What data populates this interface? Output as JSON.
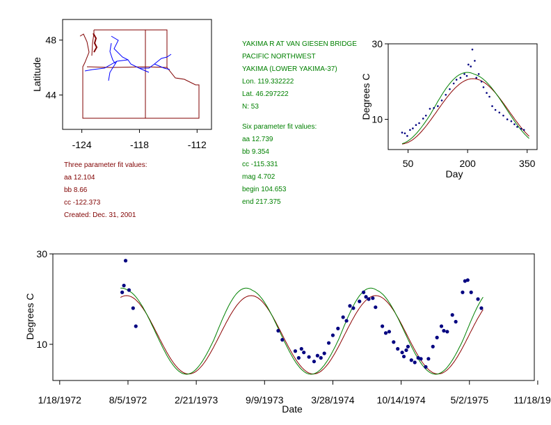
{
  "colors": {
    "three_param": "#8b0000",
    "six_param": "#008000",
    "points": "#000080",
    "map_border": "#800000",
    "river": "#0000ff",
    "axis": "#000000"
  },
  "site": {
    "title": "YAKIMA R AT VAN GIESEN BRIDGE",
    "region": "PACIFIC NORTHWEST",
    "basin": "YAKIMA (LOWER YAKIMA-37)",
    "lon": "Lon. 119.332222",
    "lat": "Lat. 46.297222",
    "n": "N: 53"
  },
  "six_param": {
    "heading": "Six parameter fit values:",
    "aa": "aa 12.739",
    "bb": "bb 9.354",
    "cc": "cc -115.331",
    "mag": "mag 4.702",
    "begin": "begin 104.653",
    "end": "end 217.375"
  },
  "three_param": {
    "heading": "Three parameter fit values:",
    "aa": "aa 12.104",
    "bb": "bb 8.66",
    "cc": "cc -122.373",
    "created": "Created:   Dec. 31, 2001"
  },
  "chart_data": [
    {
      "type": "map",
      "name": "location-map",
      "ylabel": "Latitude",
      "x_ticks": [
        "-124",
        "-118",
        "-112"
      ],
      "y_ticks": [
        "48",
        "44"
      ],
      "xlim": [
        -126,
        -110.5
      ],
      "ylim": [
        41.5,
        49.5
      ]
    },
    {
      "type": "scatter",
      "name": "seasonal",
      "xlabel": "Day",
      "ylabel": "Degrees C",
      "xlim": [
        0,
        375
      ],
      "ylim": [
        2,
        30
      ],
      "x_ticks": [
        50,
        200,
        350
      ],
      "y_ticks": [
        10,
        30
      ],
      "points": [
        [
          35,
          6.5
        ],
        [
          42,
          6.3
        ],
        [
          48,
          5.6
        ],
        [
          55,
          7.2
        ],
        [
          62,
          7.6
        ],
        [
          70,
          8.5
        ],
        [
          78,
          9.0
        ],
        [
          88,
          10.2
        ],
        [
          95,
          11.0
        ],
        [
          105,
          12.8
        ],
        [
          115,
          13.0
        ],
        [
          125,
          13.5
        ],
        [
          135,
          15.0
        ],
        [
          145,
          16.5
        ],
        [
          155,
          18.0
        ],
        [
          165,
          19.5
        ],
        [
          172,
          20.5
        ],
        [
          182,
          21.0
        ],
        [
          192,
          22.0
        ],
        [
          198,
          21.5
        ],
        [
          202,
          24.5
        ],
        [
          208,
          24.0
        ],
        [
          212,
          28.5
        ],
        [
          218,
          25.5
        ],
        [
          222,
          21.0
        ],
        [
          228,
          22.0
        ],
        [
          235,
          20.0
        ],
        [
          240,
          18.5
        ],
        [
          248,
          17.0
        ],
        [
          255,
          16.0
        ],
        [
          262,
          13.5
        ],
        [
          270,
          12.5
        ],
        [
          280,
          11.8
        ],
        [
          290,
          11.0
        ],
        [
          300,
          10.0
        ],
        [
          310,
          9.5
        ],
        [
          318,
          8.7
        ],
        [
          325,
          8.0
        ],
        [
          335,
          7.5
        ],
        [
          342,
          7.2
        ]
      ],
      "series": [
        {
          "name": "Three parameter fit values:",
          "kind": "three"
        },
        {
          "name": "Six parameter fit values:",
          "kind": "six"
        }
      ]
    },
    {
      "type": "scatter",
      "name": "timeseries",
      "xlabel": "Date",
      "ylabel": "Degrees C",
      "xlim": [
        -20,
        1390
      ],
      "ylim": [
        2,
        30
      ],
      "y_ticks": [
        10,
        30
      ],
      "x_tick_labels": [
        "1/18/1972",
        "8/5/1972",
        "2/21/1973",
        "9/9/1973",
        "3/28/1974",
        "10/14/1974",
        "5/2/1975",
        "11/18/1975"
      ],
      "x_tick_days": [
        0,
        200,
        400,
        600,
        800,
        1000,
        1200,
        1400
      ],
      "points": [
        [
          183,
          21.5
        ],
        [
          188,
          23
        ],
        [
          193,
          28.5
        ],
        [
          203,
          22
        ],
        [
          215,
          18
        ],
        [
          223,
          14
        ],
        [
          640,
          13
        ],
        [
          652,
          11
        ],
        [
          690,
          8.5
        ],
        [
          700,
          7
        ],
        [
          708,
          9
        ],
        [
          715,
          8.2
        ],
        [
          730,
          7.2
        ],
        [
          745,
          6.2
        ],
        [
          755,
          7.5
        ],
        [
          765,
          7.0
        ],
        [
          775,
          8.0
        ],
        [
          788,
          10.3
        ],
        [
          800,
          12.0
        ],
        [
          815,
          13.5
        ],
        [
          830,
          16.0
        ],
        [
          840,
          15.2
        ],
        [
          850,
          18.5
        ],
        [
          860,
          18.0
        ],
        [
          878,
          19.5
        ],
        [
          890,
          21.5
        ],
        [
          897,
          20.5
        ],
        [
          905,
          20.0
        ],
        [
          917,
          20.2
        ],
        [
          925,
          18.2
        ],
        [
          945,
          14.0
        ],
        [
          955,
          12.5
        ],
        [
          965,
          12.8
        ],
        [
          978,
          10.5
        ],
        [
          990,
          9.0
        ],
        [
          1003,
          8.2
        ],
        [
          1008,
          7.3
        ],
        [
          1015,
          8.7
        ],
        [
          1020,
          9.5
        ],
        [
          1030,
          6.5
        ],
        [
          1040,
          6.0
        ],
        [
          1050,
          7.0
        ],
        [
          1058,
          6.8
        ],
        [
          1072,
          5.0
        ],
        [
          1080,
          6.8
        ],
        [
          1093,
          9.5
        ],
        [
          1105,
          11.5
        ],
        [
          1118,
          14.0
        ],
        [
          1125,
          13.0
        ],
        [
          1135,
          12.8
        ],
        [
          1150,
          16.5
        ],
        [
          1160,
          15.0
        ],
        [
          1180,
          21.5
        ],
        [
          1187,
          24.0
        ],
        [
          1195,
          24.2
        ],
        [
          1205,
          21.5
        ],
        [
          1225,
          20.0
        ],
        [
          1235,
          18.0
        ]
      ],
      "series": [
        {
          "name": "Three parameter fit values:",
          "kind": "three"
        },
        {
          "name": "Six parameter fit values:",
          "kind": "six"
        }
      ]
    }
  ]
}
